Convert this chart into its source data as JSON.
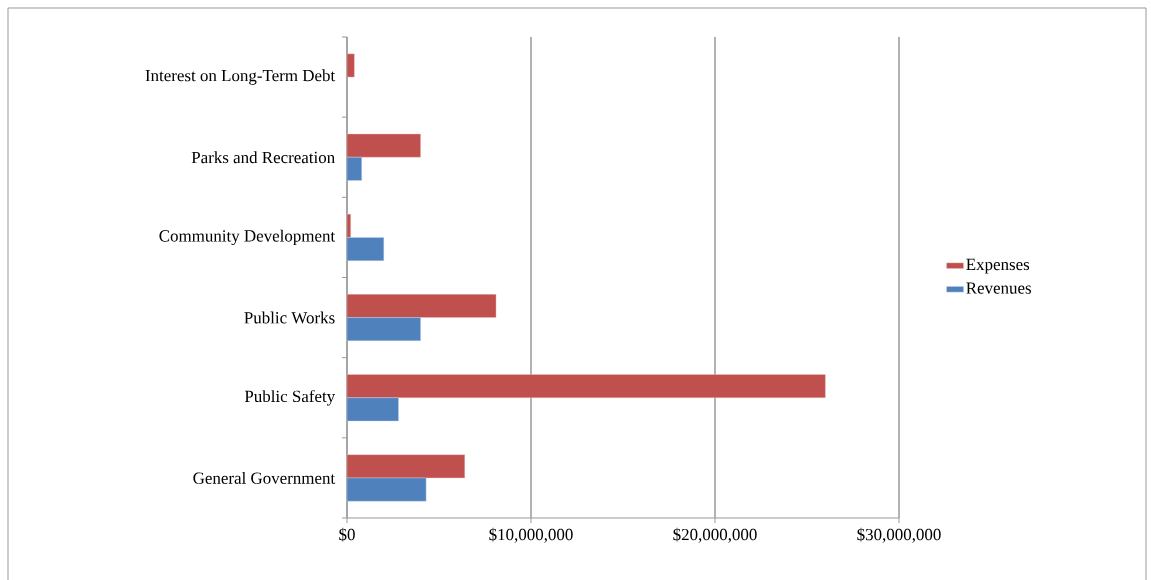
{
  "chart_data": {
    "type": "bar",
    "orientation": "horizontal",
    "categories": [
      "Interest on Long-Term Debt",
      "Parks and Recreation",
      "Community Development",
      "Public Works",
      "Public Safety",
      "General Government"
    ],
    "series": [
      {
        "name": "Expenses",
        "color": "#c0504d",
        "values": [
          400000,
          4000000,
          200000,
          8100000,
          26000000,
          6400000
        ]
      },
      {
        "name": "Revenues",
        "color": "#4f81bd",
        "values": [
          null,
          800000,
          2000000,
          4000000,
          2800000,
          4300000
        ]
      }
    ],
    "xlim": [
      0,
      30000000
    ],
    "xticks": [
      {
        "value": 0,
        "label": "$0"
      },
      {
        "value": 10000000,
        "label": "$10,000,000"
      },
      {
        "value": 20000000,
        "label": "$20,000,000"
      },
      {
        "value": 30000000,
        "label": "$30,000,000"
      }
    ],
    "grid": "x",
    "legend": "right"
  }
}
